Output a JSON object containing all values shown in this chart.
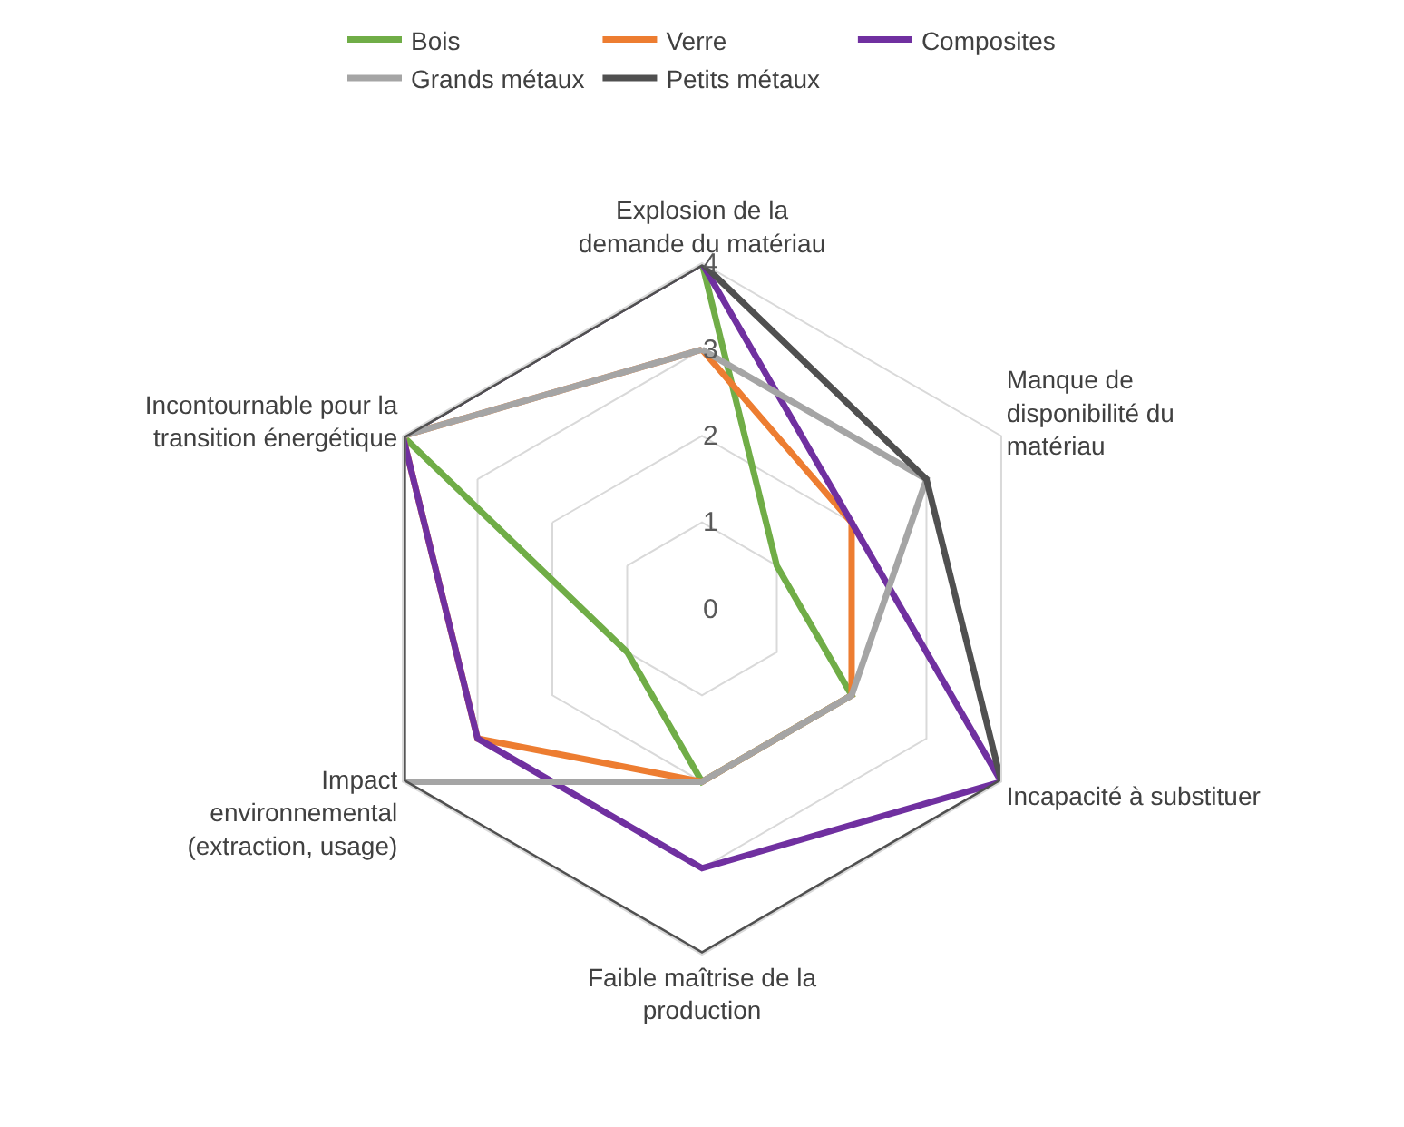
{
  "chart_data": {
    "type": "radar",
    "categories": [
      "Explosion de la\ndemande du matériau",
      "Manque de\ndisponibilité du\nmatériau",
      "Incapacité à substituer",
      "Faible maîtrise de la\nproduction",
      "Impact\nenvironnemental\n(extraction, usage)",
      "Incontournable pour la\ntransition énergétique"
    ],
    "series": [
      {
        "name": "Bois",
        "color": "#70ad47",
        "values": [
          4,
          1,
          2,
          2,
          1,
          4
        ]
      },
      {
        "name": "Verre",
        "color": "#ed7d31",
        "values": [
          3,
          2,
          2,
          2,
          3,
          4
        ]
      },
      {
        "name": "Composites",
        "color": "#7030a0",
        "values": [
          4,
          2,
          4,
          3,
          3,
          4
        ]
      },
      {
        "name": "Grands métaux",
        "color": "#a5a5a5",
        "values": [
          3,
          3,
          2,
          2,
          4,
          4
        ]
      },
      {
        "name": "Petits métaux",
        "color": "#505050",
        "values": [
          4,
          3,
          4,
          4,
          4,
          4
        ]
      }
    ],
    "ylim": [
      0,
      4
    ],
    "yticks": [
      0,
      1,
      2,
      3,
      4
    ],
    "grid": true,
    "legend": "top",
    "marker": "none",
    "line_style": "solid"
  }
}
